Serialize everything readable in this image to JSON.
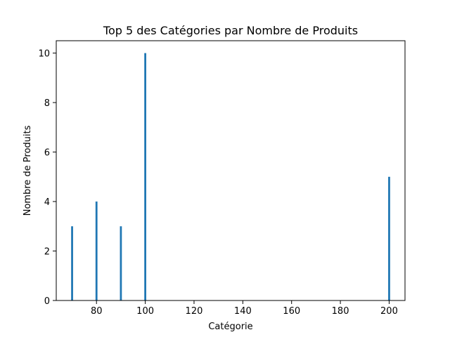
{
  "chart_data": {
    "type": "bar",
    "title": "Top 5 des Catégories par Nombre de Produits",
    "xlabel": "Catégorie",
    "ylabel": "Nombre de Produits",
    "x": [
      70,
      80,
      90,
      100,
      200
    ],
    "values": [
      3,
      4,
      3,
      10,
      5
    ],
    "xlim": [
      63.5,
      206.5
    ],
    "ylim": [
      0,
      10.5
    ],
    "bar_width": 0.8,
    "xticks": [
      80,
      100,
      120,
      140,
      160,
      180,
      200
    ],
    "yticks": [
      0,
      2,
      4,
      6,
      8,
      10
    ],
    "grid": false,
    "colors": {
      "bar": "#1f77b4"
    }
  }
}
